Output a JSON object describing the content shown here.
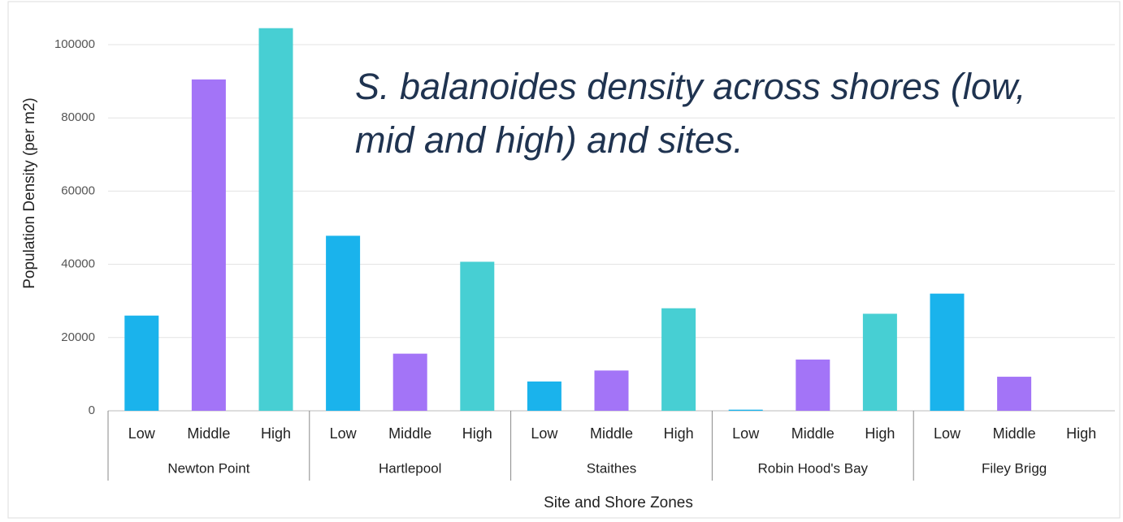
{
  "chart_data": {
    "type": "bar",
    "title": "S. balanoides density across shores (low, mid and high) and sites.",
    "x_label": "Site and Shore Zones",
    "y_label": "Population Density (per m2)",
    "categories": [
      "Newton Point",
      "Hartlepool",
      "Staithes",
      "Robin Hood's Bay",
      "Filey Brigg"
    ],
    "series": [
      {
        "name": "Low",
        "color": "#1ab3ec",
        "values": [
          26000,
          47800,
          8000,
          300,
          32000
        ]
      },
      {
        "name": "Middle",
        "color": "#a374f7",
        "values": [
          90500,
          15600,
          11000,
          14000,
          9300
        ]
      },
      {
        "name": "High",
        "color": "#47cfd3",
        "values": [
          104500,
          40700,
          28000,
          26500,
          0
        ]
      }
    ],
    "ylim": [
      0,
      105000
    ],
    "yticks": [
      0,
      20000,
      40000,
      60000,
      80000,
      100000
    ],
    "grid": true
  }
}
